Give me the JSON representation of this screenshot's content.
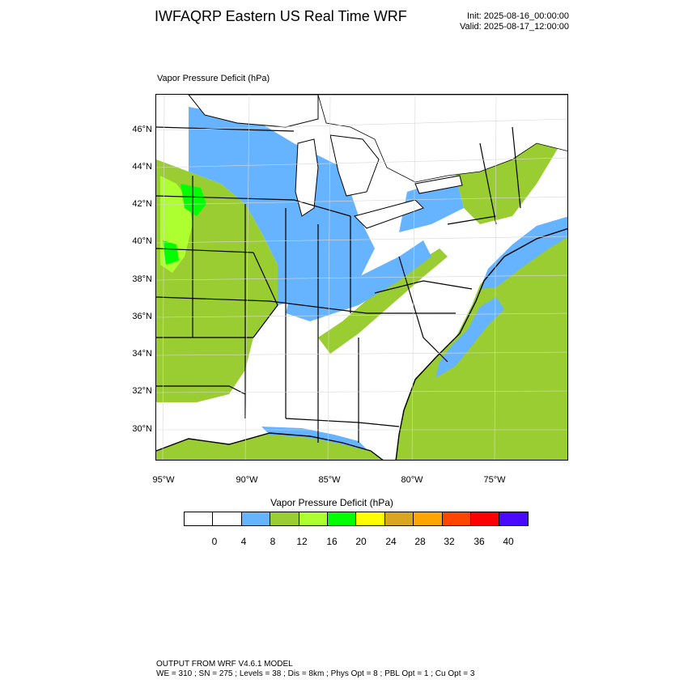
{
  "header": {
    "title": "IWFAQRP Eastern US Real Time WRF",
    "init": "Init: 2025-08-16_00:00:00",
    "valid": "Valid: 2025-08-17_12:00:00"
  },
  "map": {
    "field_title": "Vapor Pressure Deficit   (hPa)",
    "lat_labels": [
      "46°N",
      "44°N",
      "42°N",
      "40°N",
      "38°N",
      "36°N",
      "34°N",
      "32°N",
      "30°N"
    ],
    "lon_labels": [
      "95°W",
      "90°W",
      "85°W",
      "80°W",
      "75°W"
    ],
    "colors": {
      "ocean": "#9acd32",
      "light_blue": "#66b3ff",
      "yellow_green": "#9acd32",
      "green_yellow": "#adff2f",
      "green": "#00ff00",
      "land": "#ffffff",
      "water_white": "#ffffff"
    }
  },
  "colorbar": {
    "title": "Vapor Pressure Deficit   (hPa)",
    "colors": [
      "#ffffff",
      "#ffffff",
      "#66b3ff",
      "#9acd32",
      "#adff2f",
      "#00ff00",
      "#ffff00",
      "#daa520",
      "#ffa500",
      "#ff4500",
      "#ff0000",
      "#4b0aff"
    ],
    "labels": [
      "0",
      "4",
      "8",
      "12",
      "16",
      "20",
      "24",
      "28",
      "32",
      "36",
      "40"
    ]
  },
  "footer": {
    "line1": "OUTPUT FROM WRF V4.6.1 MODEL",
    "line2": "WE = 310 ; SN = 275 ; Levels = 38 ; Dis = 8km ; Phys Opt = 8 ; PBL Opt = 1 ; Cu Opt = 3"
  }
}
